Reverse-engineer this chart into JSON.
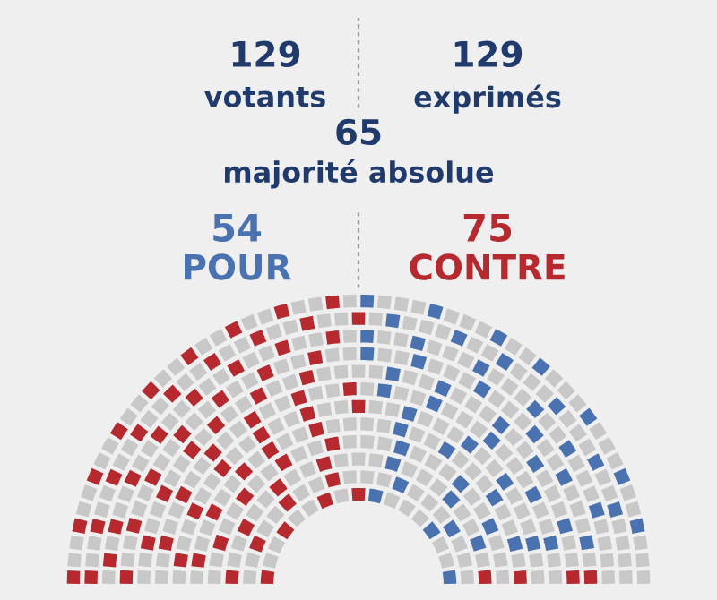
{
  "chart_data": {
    "type": "other",
    "categories": [
      "POUR",
      "CONTRE"
    ],
    "values": [
      54,
      75
    ],
    "data_labels": true,
    "colors": [
      "#4a72b0",
      "#b5292f"
    ],
    "annotations": [
      "129",
      "votants",
      "129",
      "exprimés",
      "65",
      "majorité absolue"
    ]
  }
}
